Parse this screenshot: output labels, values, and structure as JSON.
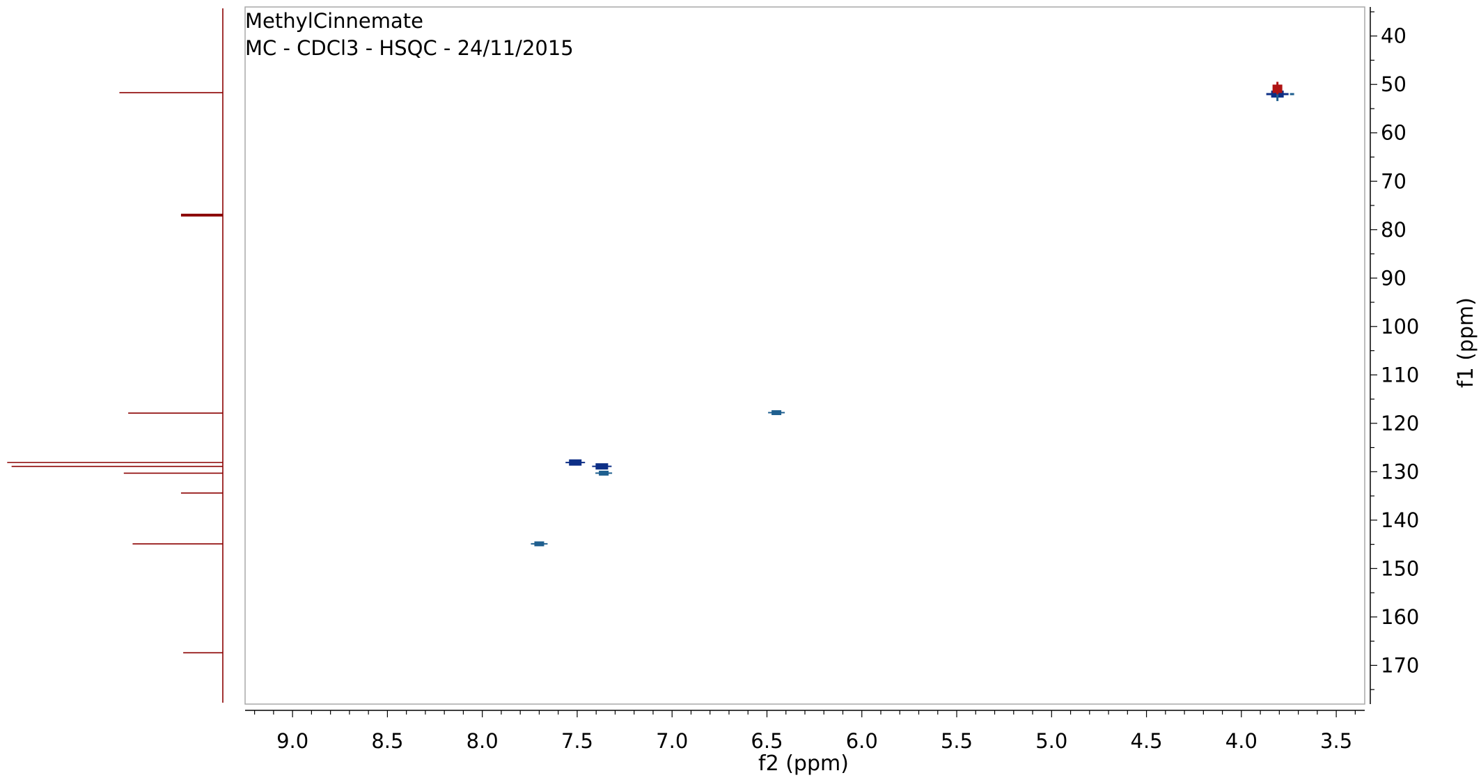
{
  "chart_data": {
    "type": "scatter",
    "subtype": "2d-nmr-hsqc",
    "title": "MethylCinnemate",
    "subtitle": "MC - CDCl3 - HSQC - 24/11/2015",
    "xlabel": "f2 (ppm)",
    "ylabel": "f1 (ppm)",
    "xlim": [
      9.25,
      3.35
    ],
    "ylim": [
      34,
      178
    ],
    "x_axis_reversed": true,
    "x_ticks": [
      "9.0",
      "8.5",
      "8.0",
      "7.5",
      "7.0",
      "6.5",
      "6.0",
      "5.5",
      "5.0",
      "4.5",
      "4.0",
      "3.5"
    ],
    "y_ticks": [
      "40",
      "50",
      "60",
      "70",
      "80",
      "90",
      "100",
      "110",
      "120",
      "130",
      "140",
      "150",
      "160",
      "170"
    ],
    "grid": false,
    "colors": {
      "peak_positive": "#0d2f86",
      "peak_positive_weak": "#1f5f8f",
      "peak_negative": "#b01414",
      "projection": "#8b0000",
      "frame": "#a8a8a8",
      "axis": "#000000"
    },
    "cross_peaks": [
      {
        "f2": 3.81,
        "f1": 52.0,
        "phase": "positive"
      },
      {
        "f2": 3.81,
        "f1": 50.9,
        "phase": "negative"
      },
      {
        "f2": 6.45,
        "f1": 117.8,
        "phase": "positive"
      },
      {
        "f2": 7.51,
        "f1": 128.1,
        "phase": "positive"
      },
      {
        "f2": 7.37,
        "f1": 128.9,
        "phase": "positive"
      },
      {
        "f2": 7.36,
        "f1": 130.3,
        "phase": "positive"
      },
      {
        "f2": 7.7,
        "f1": 144.9,
        "phase": "positive"
      }
    ],
    "f1_projection": [
      {
        "f1": 51.7,
        "intensity": 0.47
      },
      {
        "f1": 77.0,
        "intensity": 0.19
      },
      {
        "f1": 117.9,
        "intensity": 0.43
      },
      {
        "f1": 128.1,
        "intensity": 0.98
      },
      {
        "f1": 128.9,
        "intensity": 0.96
      },
      {
        "f1": 130.3,
        "intensity": 0.45
      },
      {
        "f1": 134.4,
        "intensity": 0.19
      },
      {
        "f1": 144.9,
        "intensity": 0.41
      },
      {
        "f1": 167.4,
        "intensity": 0.18
      }
    ]
  }
}
